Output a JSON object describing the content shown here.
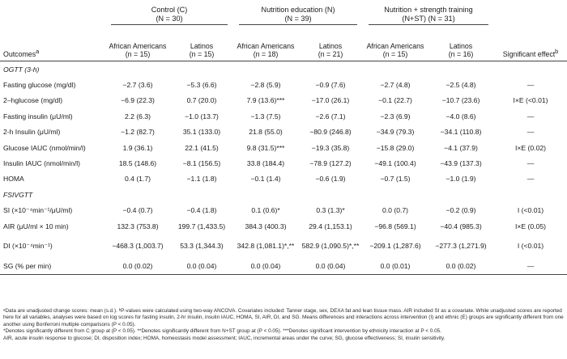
{
  "headers": {
    "group_c": "Control (C)",
    "group_c_n": "(N = 30)",
    "group_n": "Nutrition education (N)",
    "group_n_n": "(N = 39)",
    "group_nst": "Nutrition + strength training",
    "group_nst_n": "(N+ST) (N = 31)",
    "outcomes": "Outcomes",
    "outcomes_sup": "a",
    "aa": "African Americans",
    "lat": "Latinos",
    "n_c_aa": "(n = 15)",
    "n_c_lat": "(n = 15)",
    "n_n_aa": "(n = 18)",
    "n_n_lat": "(n = 21)",
    "n_nst_aa": "(n = 15)",
    "n_nst_lat": "(n = 16)",
    "sig": "Significant effect",
    "sig_sup": "b"
  },
  "sections": {
    "ogtt": "OGTT (3-h)",
    "fsivgtt": "FSIVGTT"
  },
  "rows": [
    {
      "label": "Fasting glucose (mg/dl)",
      "c_aa": "−2.7 (3.6)",
      "c_lat": "−5.3 (6.6)",
      "n_aa": "−2.8 (5.9)",
      "n_lat": "−0.9 (7.6)",
      "nst_aa": "−2.7 (4.8)",
      "nst_lat": "−2.5 (4.8)",
      "sig": "—"
    },
    {
      "label": "2–hglucose (mg/dl)",
      "c_aa": "−6.9 (22.3)",
      "c_lat": "0.7 (20.0)",
      "n_aa": "7.9 (13.6)***",
      "n_lat": "−17.0 (26.1)",
      "nst_aa": "−0.1 (22.7)",
      "nst_lat": "−10.7 (23.6)",
      "sig": "I×E (<0.01)"
    },
    {
      "label": "Fasting insulin (μU/ml)",
      "c_aa": "2.2 (6.3)",
      "c_lat": "−1.0 (13.7)",
      "n_aa": "−1.3 (7.5)",
      "n_lat": "−2.6 (7.1)",
      "nst_aa": "−2.3 (6.9)",
      "nst_lat": "−4.0 (8.6)",
      "sig": "—"
    },
    {
      "label": "2-h Insulin (μU/ml)",
      "c_aa": "−1.2 (82.7)",
      "c_lat": "35.1 (133.0)",
      "n_aa": "21.8 (55.0)",
      "n_lat": "−80.9 (246.8)",
      "nst_aa": "−34.9 (79.3)",
      "nst_lat": "−34.1 (110.8)",
      "sig": "—"
    },
    {
      "label": "Glucose IAUC (nmol/min/l)",
      "c_aa": "1.9 (36.1)",
      "c_lat": "22.1 (41.5)",
      "n_aa": "9.8 (31.5)***",
      "n_lat": "−19.3 (35.8)",
      "nst_aa": "−15.8 (29.0)",
      "nst_lat": "−4.1 (37.9)",
      "sig": "I×E (0.02)"
    },
    {
      "label": "Insulin IAUC (nmol/min/l)",
      "c_aa": "18.5 (148.6)",
      "c_lat": "−8.1 (156.5)",
      "n_aa": "33.8 (184.4)",
      "n_lat": "−78.9 (127.2)",
      "nst_aa": "−49.1 (100.4)",
      "nst_lat": "−43.9 (137.3)",
      "sig": "—"
    },
    {
      "label": "HOMA",
      "c_aa": "0.4 (1.7)",
      "c_lat": "−1.1 (1.8)",
      "n_aa": "−0.1 (1.4)",
      "n_lat": "−0.6 (1.9)",
      "nst_aa": "−0.7 (1.5)",
      "nst_lat": "−1.0 (1.9)",
      "sig": "—"
    }
  ],
  "rows2": [
    {
      "label": "SI (×10⁻⁴min⁻¹/μU/ml)",
      "c_aa": "−0.4 (0.7)",
      "c_lat": "−0.4 (1.8)",
      "n_aa": "0.1 (0.6)*",
      "n_lat": "0.3 (1.3)*",
      "nst_aa": "0.0 (0.7)",
      "nst_lat": "−0.2 (0.9)",
      "sig": "I (<0.01)"
    },
    {
      "label": "AIR (μU/ml × 10 min)",
      "c_aa": "132.3 (753.8)",
      "c_lat": "199.7 (1,433.5)",
      "n_aa": "384.3 (400.3)",
      "n_lat": "29.4 (1,153.1)",
      "nst_aa": "−96.8 (569.1)",
      "nst_lat": "−40.4 (985.3)",
      "sig": "I×E (0.05)"
    },
    {
      "label": "DI (×10⁻⁴min⁻¹)",
      "c_aa": "−468.3 (1,003.7)",
      "c_lat": "53.3 (1,344.3)",
      "n_aa": "342.8 (1,081.1)*,**",
      "n_lat": "582.9 (1,090.5)*,**",
      "nst_aa": "−209.1 (1,287.6)",
      "nst_lat": "−277.3 (1,271.9)",
      "sig": "I (<0.01)"
    },
    {
      "label": "SG (% per min)",
      "c_aa": "0.0 (0.02)",
      "c_lat": "0.0 (0.04)",
      "n_aa": "0.0 (0.04)",
      "n_lat": "0.0 (0.04)",
      "nst_aa": "0.0 (0.01)",
      "nst_lat": "0.0 (0.02)",
      "sig": "—"
    }
  ],
  "notes": {
    "n1": "ᵃData are unadjusted change scores: mean (s.d.). ᵇP-values were calculated using two-way ANCOVA. Covariates included: Tanner stage, sex, DEXA fat and lean tissue mass. AIR included SI as a covariate. While unadjusted scores are reported here for all variables, analyses were based on log scores for fasting insulin, 2-hr insulin, insulin IAUC, HOMA, SI, AIR, DI, and SG. Means differences and interactions across intervention (I) and ethnic (E) groups are significantly different from one another using Bonferroni multiple comparisons (P < 0.05).",
    "n2": "*Denotes significantly different from C group at (P < 0.05). **Denotes significantly different from N+ST group at (P < 0.05). ***Denotes significant intervention by ethnicity interaction at P < 0.05.",
    "n3": "AIR, acute insulin response to glucose; DI, disposition index; HOMA, homeostasis model assessment; IAUC, incremental areas under the curve; SG, glucose effectiveness; SI, insulin sensitivity."
  }
}
